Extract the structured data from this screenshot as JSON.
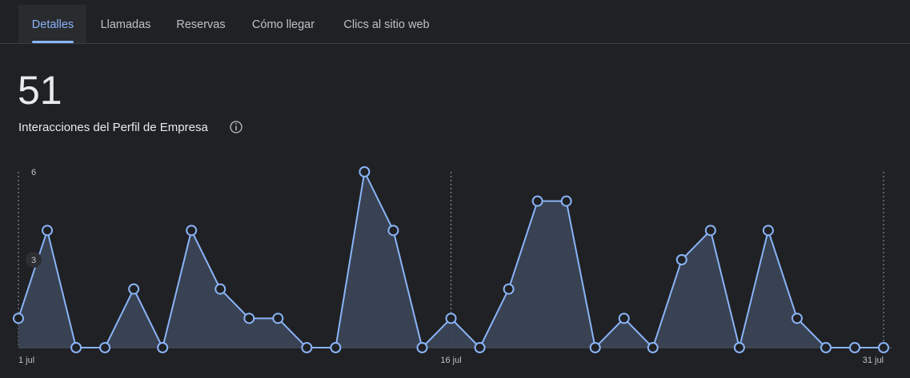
{
  "tabs": [
    "Detalles",
    "Llamadas",
    "Reservas",
    "Cómo llegar",
    "Clics al sitio web"
  ],
  "active_tab": 0,
  "metric": {
    "value": 51,
    "label": "Interacciones del Perfil de Empresa"
  },
  "chart_data": {
    "type": "area",
    "categories": [
      "1 jul",
      null,
      null,
      null,
      null,
      null,
      null,
      null,
      null,
      null,
      null,
      null,
      null,
      null,
      null,
      "16 jul",
      null,
      null,
      null,
      null,
      null,
      null,
      null,
      null,
      null,
      null,
      null,
      null,
      null,
      null,
      "31 jul"
    ],
    "values": [
      1,
      4,
      0,
      0,
      2,
      0,
      4,
      2,
      1,
      1,
      0,
      0,
      6,
      4,
      0,
      1,
      0,
      2,
      5,
      5,
      0,
      1,
      0,
      3,
      4,
      0,
      4,
      1,
      0,
      0,
      0
    ],
    "color": "#8ab4f8",
    "ylim": [
      0,
      6
    ],
    "yticks": [
      3,
      6
    ]
  }
}
